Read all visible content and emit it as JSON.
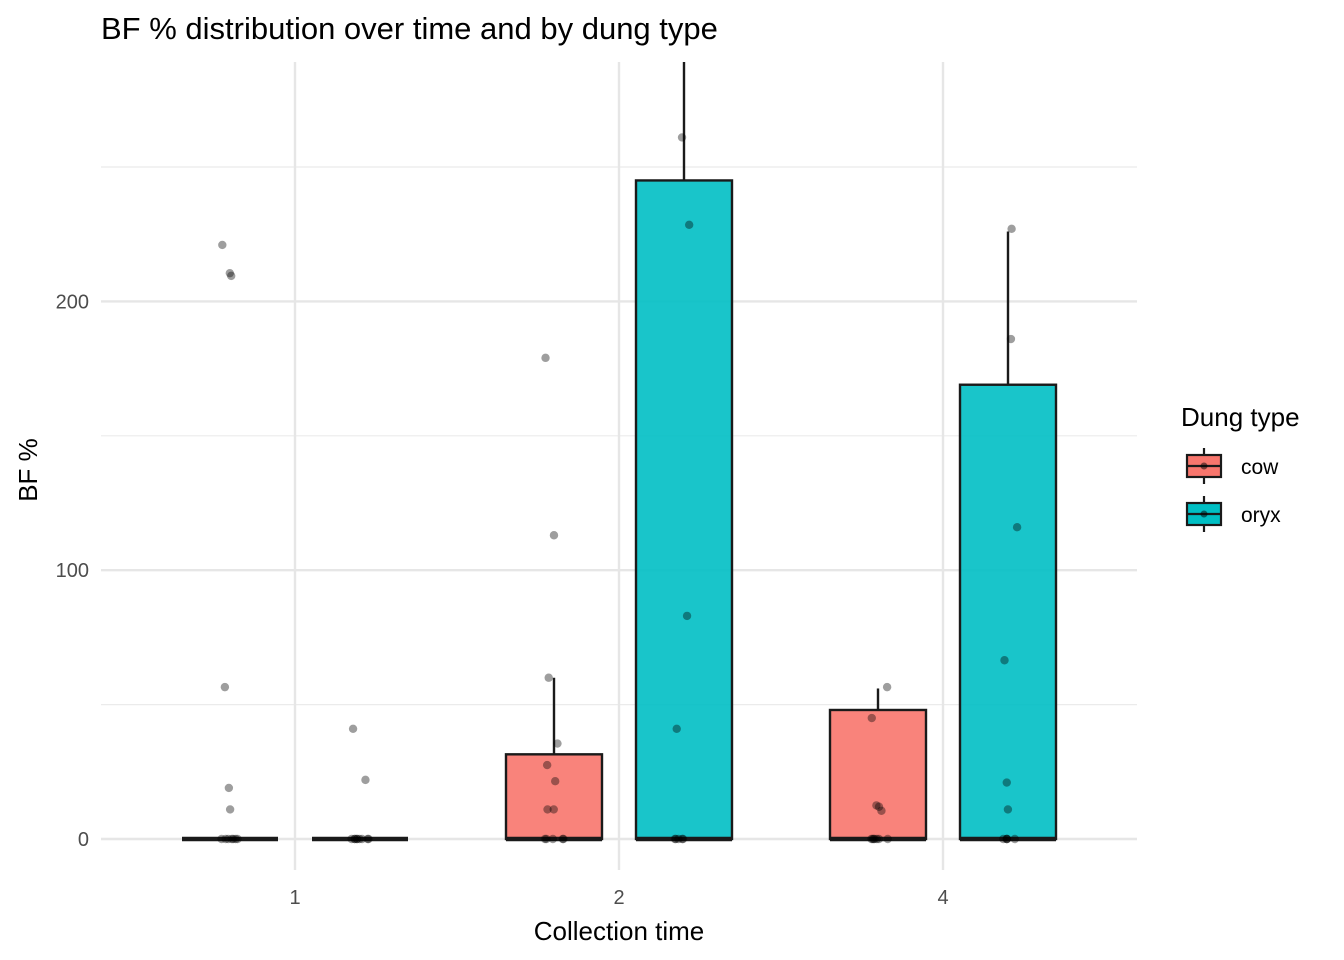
{
  "chart_data": {
    "type": "box",
    "title": "BF % distribution over time and by dung type",
    "xlabel": "Collection time",
    "ylabel": "BF %",
    "categories": [
      "1",
      "2",
      "4"
    ],
    "yticks": [
      0,
      100,
      200
    ],
    "ylim": [
      -11,
      290
    ],
    "grid": true,
    "legend": {
      "title": "Dung type",
      "position": "right"
    },
    "series": [
      {
        "name": "cow",
        "color": "#F8766D",
        "boxes": [
          {
            "category": "1",
            "q1": 0,
            "median": 0,
            "q3": 0,
            "whisker_low": 0,
            "whisker_high": 0
          },
          {
            "category": "2",
            "q1": 0,
            "median": 0,
            "q3": 31.5,
            "whisker_low": 0,
            "whisker_high": 60
          },
          {
            "category": "4",
            "q1": 0,
            "median": 0,
            "q3": 48,
            "whisker_low": 0,
            "whisker_high": 56
          }
        ],
        "points": [
          {
            "category": "1",
            "values": [
              210.5,
              209.5,
              221,
              56.5,
              19,
              11,
              0,
              0,
              0,
              0,
              0,
              0,
              0
            ]
          },
          {
            "category": "2",
            "values": [
              179,
              113,
              60,
              35.5,
              27.5,
              21.5,
              11,
              11,
              0,
              0,
              0,
              0,
              0
            ]
          },
          {
            "category": "4",
            "values": [
              56.5,
              45,
              12.5,
              12,
              10.5,
              0,
              0,
              0,
              0,
              0,
              0,
              0
            ]
          }
        ]
      },
      {
        "name": "oryx",
        "color": "#00BFC4",
        "boxes": [
          {
            "category": "1",
            "q1": 0,
            "median": 0,
            "q3": 0,
            "whisker_low": 0,
            "whisker_high": 0
          },
          {
            "category": "2",
            "q1": 0,
            "median": 0,
            "q3": 245,
            "whisker_low": 0,
            "whisker_high": 290
          },
          {
            "category": "4",
            "q1": 0,
            "median": 0,
            "q3": 169,
            "whisker_low": 0,
            "whisker_high": 226
          }
        ],
        "points": [
          {
            "category": "1",
            "values": [
              41,
              22,
              0,
              0,
              0,
              0,
              0,
              0,
              0,
              0,
              0
            ]
          },
          {
            "category": "2",
            "values": [
              261,
              228.5,
              83,
              41,
              0,
              0,
              0,
              0,
              0
            ]
          },
          {
            "category": "4",
            "values": [
              227,
              186,
              116,
              66.5,
              21,
              11,
              0,
              0,
              0,
              0,
              0
            ]
          }
        ]
      }
    ]
  }
}
